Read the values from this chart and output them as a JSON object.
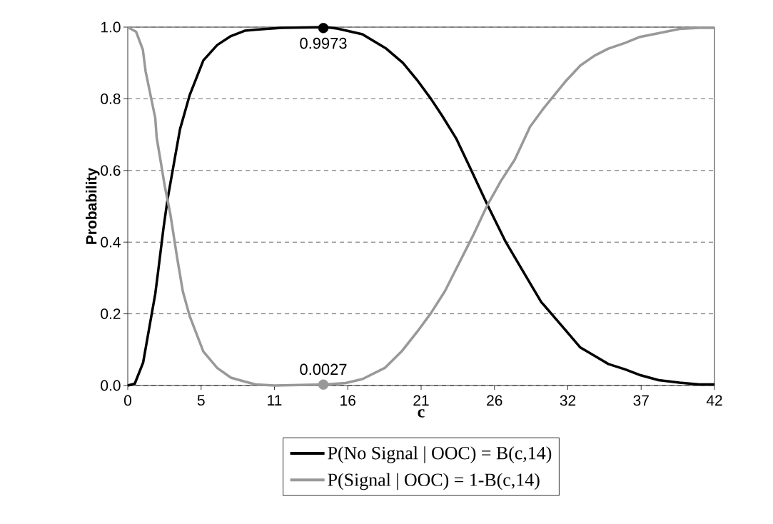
{
  "chart_data": {
    "type": "line",
    "xlabel": "c",
    "ylabel": "Probability",
    "xlim": [
      0,
      42
    ],
    "ylim": [
      0,
      1
    ],
    "xticks": [
      0,
      {
        "value": 5.25,
        "label": "5"
      },
      {
        "value": 10.5,
        "label": "11"
      },
      {
        "value": 15.75,
        "label": "16"
      },
      21,
      {
        "value": 26.25,
        "label": "26"
      },
      {
        "value": 31.5,
        "label": "32"
      },
      {
        "value": 36.75,
        "label": "37"
      },
      42
    ],
    "yticks": [
      {
        "value": 0,
        "label": "0.0"
      },
      {
        "value": 0.2,
        "label": "0.2"
      },
      {
        "value": 0.4,
        "label": "0.4"
      },
      {
        "value": 0.6,
        "label": "0.6"
      },
      {
        "value": 0.8,
        "label": "0.8"
      },
      {
        "value": 1,
        "label": "1.0"
      }
    ],
    "grid": "y",
    "legend": "bottom",
    "line_style": "solid",
    "series": [
      {
        "name": "P(No Signal | OOC) = B(c,14)",
        "color": "#000000",
        "x": [
          0,
          0.5,
          1.1,
          1.38,
          1.97,
          2.17,
          2.56,
          2.85,
          3.35,
          3.74,
          4.43,
          5.41,
          6.4,
          7.38,
          8.37,
          9.2,
          11,
          14.16,
          15.0,
          16.8,
          18.5,
          19.7,
          20.7,
          21.7,
          22.5,
          23.5,
          24.5,
          25.7,
          27.05,
          28.2,
          29.6,
          31.3,
          32.4,
          33.4,
          34.4,
          35.6,
          36.6,
          38.0,
          39.5,
          40.9,
          42
        ],
        "values": [
          0,
          0.005,
          0.064,
          0.126,
          0.256,
          0.317,
          0.44,
          0.52,
          0.63,
          0.715,
          0.81,
          0.907,
          0.95,
          0.975,
          0.99,
          0.993,
          0.998,
          1.0,
          0.996,
          0.98,
          0.94,
          0.9,
          0.853,
          0.8,
          0.753,
          0.69,
          0.608,
          0.508,
          0.401,
          0.325,
          0.233,
          0.156,
          0.106,
          0.083,
          0.06,
          0.045,
          0.03,
          0.015,
          0.008,
          0.003,
          0.003
        ]
      },
      {
        "name": "P(Signal | OOC) = 1-B(c,14)",
        "color": "#999999",
        "x": [
          0,
          0.6,
          1.08,
          1.28,
          1.97,
          2.07,
          2.66,
          3.05,
          3.54,
          3.94,
          4.43,
          5.41,
          6.4,
          7.38,
          8.37,
          9.15,
          10.5,
          14.16,
          15.6,
          16.8,
          18.4,
          19.6,
          20.7,
          21.7,
          22.7,
          23.7,
          24.7,
          25.7,
          26.7,
          27.7,
          28.8,
          29.7,
          31.3,
          32.4,
          33.4,
          34.4,
          35.6,
          36.6,
          38.0,
          39.5,
          40.9,
          42
        ],
        "values": [
          1.0,
          0.987,
          0.937,
          0.876,
          0.746,
          0.692,
          0.554,
          0.478,
          0.355,
          0.263,
          0.194,
          0.095,
          0.049,
          0.022,
          0.011,
          0.003,
          0,
          0.003,
          0.007,
          0.018,
          0.049,
          0.095,
          0.149,
          0.202,
          0.263,
          0.34,
          0.417,
          0.5,
          0.57,
          0.63,
          0.722,
          0.77,
          0.847,
          0.893,
          0.92,
          0.94,
          0.956,
          0.972,
          0.983,
          0.995,
          0.998,
          0.998
        ]
      },
      {
        "type": "scatter",
        "marker": "circle",
        "color": "#000000",
        "x": [
          14
        ],
        "values": [
          0.9973
        ],
        "value_labels": [
          "0.9973"
        ]
      },
      {
        "type": "scatter",
        "marker": "circle",
        "color": "#999999",
        "x": [
          14
        ],
        "values": [
          0.0027
        ],
        "value_labels": [
          "0.0027"
        ]
      }
    ]
  }
}
